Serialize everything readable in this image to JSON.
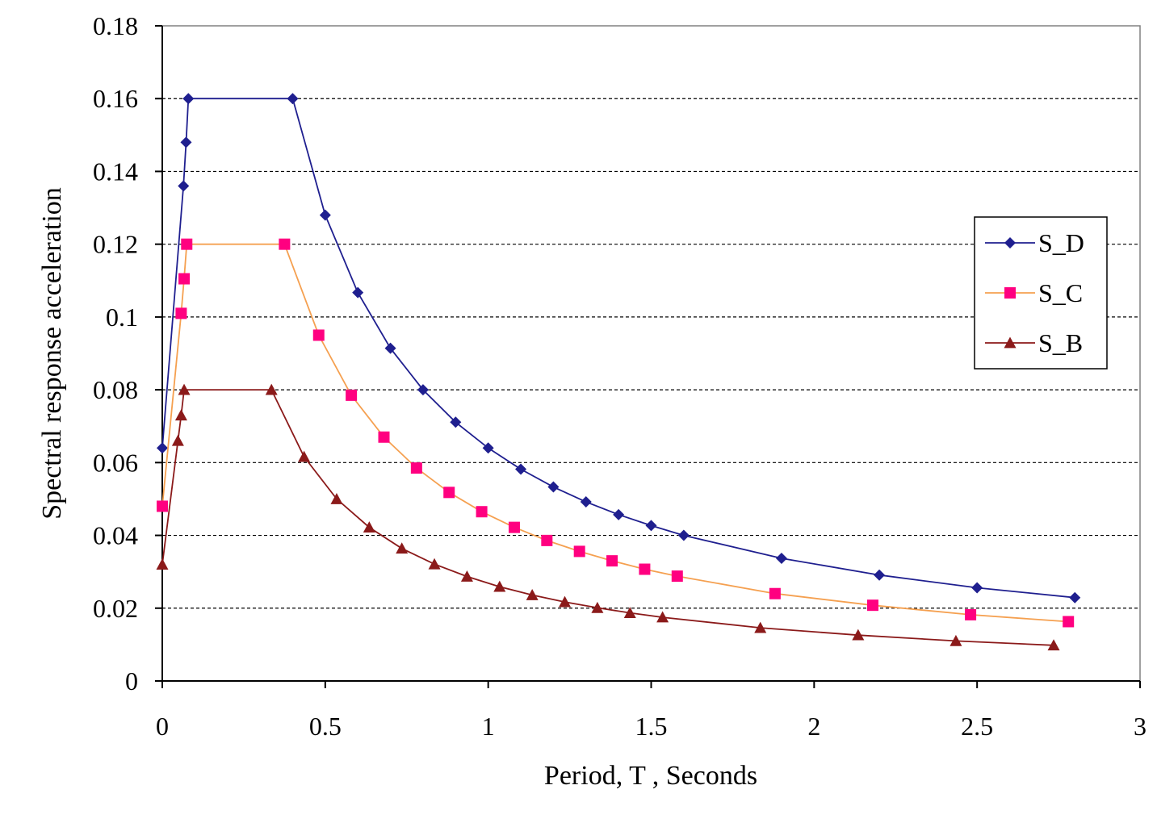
{
  "chart_data": {
    "type": "line",
    "title": "",
    "xlabel": "Period, T , Seconds",
    "ylabel": "Spectral response acceleration",
    "xlim": [
      0,
      3
    ],
    "ylim": [
      0,
      0.18
    ],
    "xticks": [
      0,
      0.5,
      1,
      1.5,
      2,
      2.5,
      3
    ],
    "xtick_labels": [
      "0",
      "0.5",
      "1",
      "1.5",
      "2",
      "2.5",
      "3"
    ],
    "yticks": [
      0,
      0.02,
      0.04,
      0.06,
      0.08,
      0.1,
      0.12,
      0.14,
      0.16,
      0.18
    ],
    "ytick_labels": [
      "0",
      "0.02",
      "0.04",
      "0.06",
      "0.08",
      "0.1",
      "0.12",
      "0.14",
      "0.16",
      "0.18"
    ],
    "grid": "horizontal dashed",
    "legend_position": "right",
    "series": [
      {
        "name": "S_D",
        "color": "#1f1f8f",
        "marker": "diamond",
        "marker_color": "#1f1f8f",
        "x": [
          0,
          0.065,
          0.073,
          0.08,
          0.4,
          0.5,
          0.6,
          0.7,
          0.8,
          0.9,
          1.0,
          1.1,
          1.2,
          1.3,
          1.4,
          1.5,
          1.6,
          1.9,
          2.2,
          2.5,
          2.8
        ],
        "y": [
          0.064,
          0.136,
          0.148,
          0.16,
          0.16,
          0.128,
          0.1067,
          0.0914,
          0.08,
          0.0711,
          0.064,
          0.0582,
          0.0533,
          0.0492,
          0.0457,
          0.0427,
          0.04,
          0.0337,
          0.0291,
          0.0256,
          0.0229
        ]
      },
      {
        "name": "S_C",
        "color": "#f5a050",
        "marker": "square",
        "marker_color": "#ff0080",
        "x": [
          0,
          0.058,
          0.067,
          0.075,
          0.375,
          0.48,
          0.58,
          0.68,
          0.78,
          0.88,
          0.98,
          1.08,
          1.18,
          1.28,
          1.38,
          1.48,
          1.58,
          1.88,
          2.18,
          2.48,
          2.78
        ],
        "y": [
          0.048,
          0.101,
          0.1105,
          0.12,
          0.12,
          0.095,
          0.0785,
          0.067,
          0.0585,
          0.0518,
          0.0465,
          0.0422,
          0.0386,
          0.0356,
          0.033,
          0.0307,
          0.0288,
          0.024,
          0.0208,
          0.0182,
          0.0163
        ]
      },
      {
        "name": "S_B",
        "color": "#8b1a1a",
        "marker": "triangle",
        "marker_color": "#8b1a1a",
        "x": [
          0,
          0.048,
          0.058,
          0.067,
          0.335,
          0.435,
          0.535,
          0.635,
          0.735,
          0.835,
          0.935,
          1.035,
          1.135,
          1.235,
          1.335,
          1.435,
          1.535,
          1.835,
          2.135,
          2.435,
          2.735
        ],
        "y": [
          0.032,
          0.066,
          0.073,
          0.08,
          0.08,
          0.0616,
          0.05,
          0.0422,
          0.0364,
          0.0321,
          0.0287,
          0.0259,
          0.0236,
          0.0217,
          0.0201,
          0.0187,
          0.0175,
          0.0146,
          0.0126,
          0.011,
          0.0098
        ]
      }
    ]
  }
}
